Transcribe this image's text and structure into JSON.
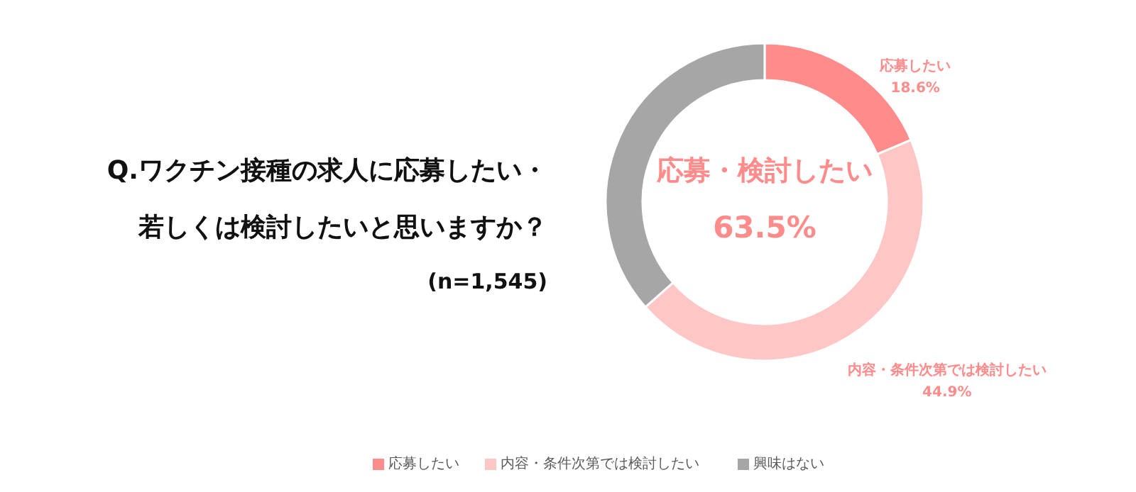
{
  "chart_data": {
    "type": "donut",
    "title": "Q.ワクチン接種の求人に応募したい・若しくは検討したいと思いますか？",
    "subtitle": "(n=1,545)",
    "annotations": [
      "応募・検討したい",
      "63.5%"
    ],
    "categories": [
      "応募したい",
      "内容・条件次第では検討したい",
      "興味はない"
    ],
    "values": [
      18.6,
      44.9,
      36.5
    ],
    "colors": [
      "#ff8b8b",
      "#ffc6c6",
      "#a6a6a6"
    ],
    "value_labels": [
      "18.6%",
      "44.9%",
      null
    ],
    "legend": "bottom"
  }
}
